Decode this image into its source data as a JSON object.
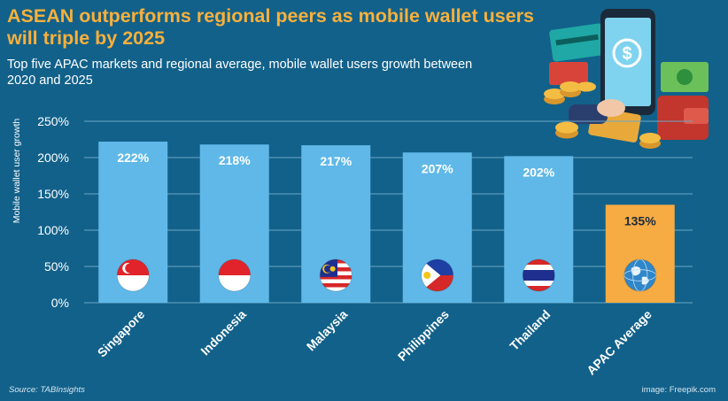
{
  "title": "ASEAN outperforms regional peers as mobile wallet users will triple by 2025",
  "subtitle": "Top five APAC markets and regional average, mobile wallet users growth between 2020 and 2025",
  "source": "Source: TABInsights",
  "image_credit": "image: Freepik.com",
  "colors": {
    "background": "#12618a",
    "title": "#f8b03c",
    "country_bar": "#5fb8e8",
    "average_bar": "#f6ab43",
    "grid": "#6ba6c6"
  },
  "chart_data": {
    "type": "bar",
    "ylabel": "Mobile wallet user growth",
    "ylim": [
      0,
      250
    ],
    "yticks": [
      0,
      50,
      100,
      150,
      200,
      250
    ],
    "ytick_labels": [
      "0%",
      "50%",
      "100%",
      "150%",
      "200%",
      "250%"
    ],
    "categories": [
      "Singapore",
      "Indonesia",
      "Malaysia",
      "Philippines",
      "Thailand",
      "APAC Average"
    ],
    "values": [
      222,
      218,
      217,
      207,
      202,
      135
    ],
    "data_labels": [
      "222%",
      "218%",
      "217%",
      "207%",
      "202%",
      "135%"
    ],
    "highlight_category": "APAC Average",
    "category_icons": [
      "singapore-flag-icon",
      "indonesia-flag-icon",
      "malaysia-flag-icon",
      "philippines-flag-icon",
      "thailand-flag-icon",
      "globe-icon"
    ],
    "grid": true,
    "legend": "none"
  }
}
